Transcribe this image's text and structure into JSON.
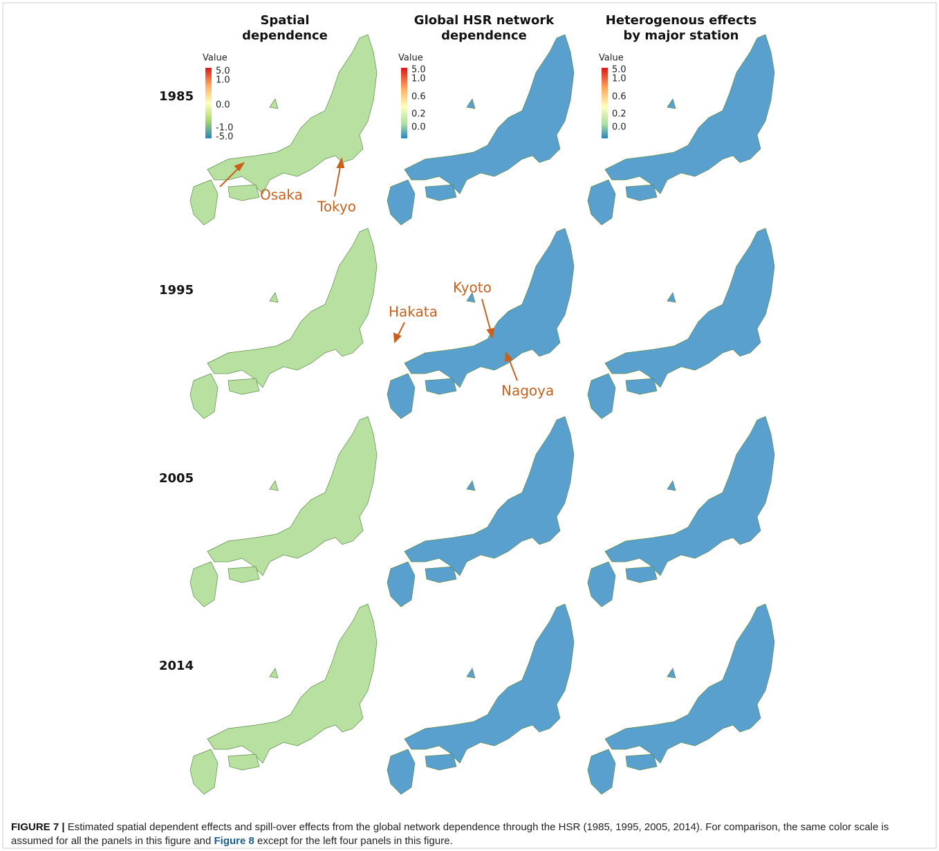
{
  "columns": [
    "Spatial\ndependence",
    "Global HSR network\ndependence",
    "Heterogenous effects\nby major station"
  ],
  "rows": [
    "1985",
    "1995",
    "2005",
    "2014"
  ],
  "legends": [
    {
      "title": "Value",
      "ticks": [
        "5.0",
        "1.0",
        "0.0",
        "-1.0",
        "-5.0"
      ]
    },
    {
      "title": "Value",
      "ticks": [
        "5.0",
        "1.0",
        "0.6",
        "0.2",
        "0.0"
      ]
    },
    {
      "title": "Value",
      "ticks": [
        "5.0",
        "1.0",
        "0.6",
        "0.2",
        "0.0"
      ]
    }
  ],
  "annotations": [
    "Osaka",
    "Tokyo",
    "Hakata",
    "Kyoto",
    "Nagoya"
  ],
  "caption": {
    "label": "FIGURE 7 |",
    "text1": " Estimated spatial dependent effects and spill-over effects from the global network dependence through the HSR (1985, 1995, 2005, 2014). For comparison, the same color scale is assumed for all the panels in this figure and ",
    "ref": "Figure 8",
    "text2": " except for the left four panels in this figure."
  }
}
